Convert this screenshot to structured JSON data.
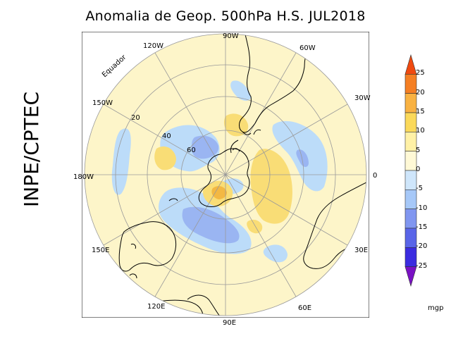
{
  "title": "Anomalia de Geop. 500hPa H.S. JUL2018",
  "source": "INPE/CPTEC",
  "map": {
    "projection": "polar stereographic, southern hemisphere",
    "equator_label": "Equador",
    "lat_labels": [
      "20",
      "40",
      "60"
    ],
    "lon_labels": {
      "top": "90W",
      "top_left": "120W",
      "top_right": "60W",
      "left_upper": "150W",
      "left": "180W",
      "left_lower": "150E",
      "right_upper": "30W",
      "right": "0",
      "right_lower": "30E",
      "bottom_left": "120E",
      "bottom_right": "60E",
      "bottom": "90E"
    },
    "background_color": "#fdf5c9",
    "anomaly_colors": {
      "neg_light": "#bcdcf9",
      "neg_medium": "#9ab5f2",
      "pos_light": "#fbe89d",
      "pos_medium": "#f6d560",
      "pos_strong": "#f3b843"
    }
  },
  "colorbar": {
    "unit": "mgp",
    "labels": [
      "25",
      "20",
      "15",
      "10",
      "5",
      "0",
      "-5",
      "-10",
      "-15",
      "-20",
      "-25"
    ],
    "colors": [
      "#f04a10",
      "#f57f23",
      "#f9b242",
      "#fbd95a",
      "#fff1a6",
      "#fff9d6",
      "#cfe6fb",
      "#a6c8f8",
      "#8096f0",
      "#5965e8",
      "#3b2ce0",
      "#7a11c4"
    ]
  }
}
